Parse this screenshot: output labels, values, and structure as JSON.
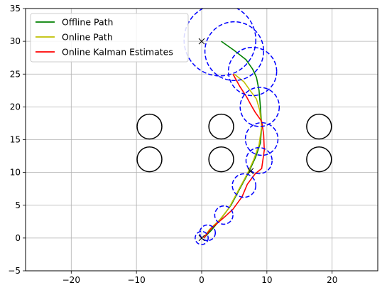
{
  "chart_data": {
    "type": "line",
    "title": "",
    "xlabel": "",
    "ylabel": "",
    "xlim": [
      -27,
      27
    ],
    "ylim": [
      -5,
      35
    ],
    "x_ticks": [
      -20,
      -10,
      0,
      10,
      20
    ],
    "y_ticks": [
      -5,
      0,
      5,
      10,
      15,
      20,
      25,
      30,
      35
    ],
    "x_tick_labels": [
      "−20",
      "−10",
      "0",
      "10",
      "20"
    ],
    "y_tick_labels": [
      "−5",
      "0",
      "5",
      "10",
      "15",
      "20",
      "25",
      "30",
      "35"
    ],
    "grid": true,
    "legend_position": "top-left",
    "series": [
      {
        "name": "Offline Path",
        "color": "#008000",
        "x": [
          0.3,
          1.5,
          3,
          4.5,
          6,
          7.2,
          8.3,
          9,
          9.2,
          9.0,
          8.8,
          8.4,
          7.8,
          6.8,
          5,
          3
        ],
        "y": [
          0,
          1.2,
          3,
          5,
          7.8,
          10,
          12.4,
          14.5,
          17,
          20,
          22.5,
          24.5,
          25.8,
          27.2,
          28.6,
          30
        ]
      },
      {
        "name": "Online Path",
        "color": "#bfbf00",
        "x": [
          0.3,
          1.2,
          2.8,
          4.2,
          5.8,
          7,
          8,
          8.8,
          9.2,
          8.9,
          8.4,
          7.5,
          6.5,
          5.5,
          5
        ],
        "y": [
          0,
          1.3,
          2.8,
          4.6,
          7.6,
          9.8,
          12,
          14.2,
          17,
          19.5,
          21.2,
          22.4,
          23.8,
          24.6,
          25
        ]
      },
      {
        "name": "Online Kalman Estimates",
        "color": "#ff0000",
        "x": [
          0.3,
          1.5,
          3.5,
          4.8,
          6.2,
          7,
          8.2,
          9.2,
          9.6,
          9.5,
          9.2,
          8.2,
          7.5,
          6.9,
          5.8,
          4.8
        ],
        "y": [
          0,
          1.5,
          3.2,
          4.4,
          6.3,
          8.2,
          9.8,
          10.6,
          13.4,
          15.8,
          17.8,
          19.2,
          20.4,
          21.5,
          23.2,
          25
        ]
      }
    ],
    "obstacles": {
      "color": "#000000",
      "radius": 1.9,
      "centers": [
        [
          -8,
          17
        ],
        [
          3,
          17
        ],
        [
          18,
          17
        ],
        [
          -8,
          12
        ],
        [
          3,
          12
        ],
        [
          18,
          12
        ]
      ]
    },
    "uncertainty_circles": {
      "color": "#0000ff",
      "style": "dashed",
      "circles": [
        {
          "x": 0,
          "y": 0,
          "r": 1.0
        },
        {
          "x": 0.9,
          "y": 0.8,
          "r": 1.2
        },
        {
          "x": 3.4,
          "y": 3.5,
          "r": 1.4
        },
        {
          "x": 6.5,
          "y": 8.0,
          "r": 1.8
        },
        {
          "x": 8.8,
          "y": 11.8,
          "r": 2.0
        },
        {
          "x": 9.2,
          "y": 15.1,
          "r": 2.5
        },
        {
          "x": 8.9,
          "y": 20.0,
          "r": 3.0
        },
        {
          "x": 7.8,
          "y": 25.4,
          "r": 3.7
        },
        {
          "x": 5.0,
          "y": 28.5,
          "r": 4.5
        },
        {
          "x": 2.8,
          "y": 30.2,
          "r": 5.5
        }
      ]
    },
    "markers": {
      "color": "#000000",
      "symbol": "×",
      "points": [
        [
          0,
          0
        ],
        [
          0,
          30
        ],
        [
          7.5,
          10.2
        ]
      ]
    }
  }
}
